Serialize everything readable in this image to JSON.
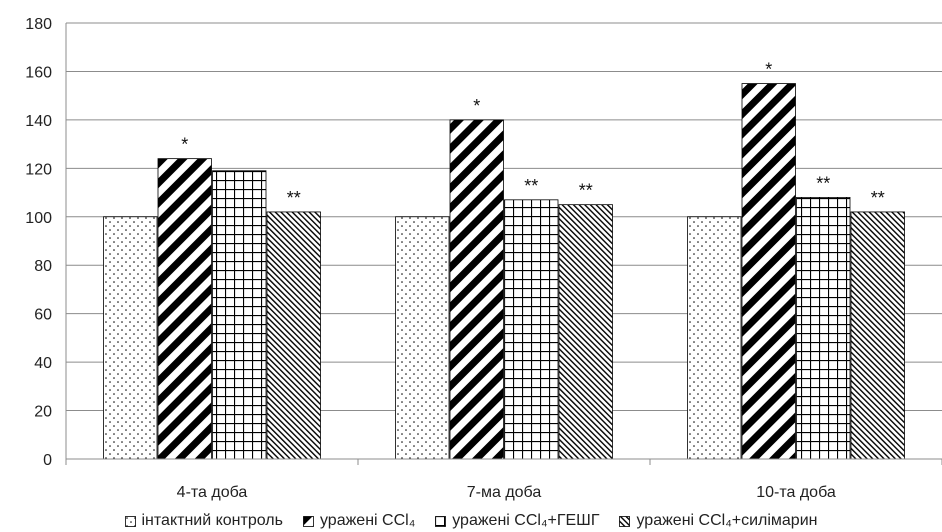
{
  "chart_data": {
    "type": "bar",
    "categories": [
      "4-та доба",
      "7-ма доба",
      "10-та доба"
    ],
    "series": [
      {
        "name": "інтактний контроль",
        "pattern": "dots",
        "values": [
          100,
          100,
          100
        ]
      },
      {
        "name": "уражені CCl₄",
        "pattern": "wide-diagonal",
        "values": [
          124,
          140,
          155
        ]
      },
      {
        "name": "уражені CCl₄+ГЕШГ",
        "pattern": "grid",
        "values": [
          119,
          107,
          108
        ]
      },
      {
        "name": "уражені CCl₄+силімарин",
        "pattern": "fine-diagonal",
        "values": [
          102,
          105,
          102
        ]
      }
    ],
    "annotations": [
      [
        "",
        "*",
        "",
        "**"
      ],
      [
        "",
        "*",
        "**",
        "**"
      ],
      [
        "",
        "*",
        "**",
        "**"
      ]
    ],
    "ylim": [
      0,
      180
    ],
    "yticks": [
      0,
      20,
      40,
      60,
      80,
      100,
      120,
      140,
      160,
      180
    ],
    "grid": true,
    "legend": "bottom",
    "colors": {
      "bar_fill": "#ffffff",
      "pattern": "#000000",
      "grid": "#8c8c8c"
    }
  }
}
